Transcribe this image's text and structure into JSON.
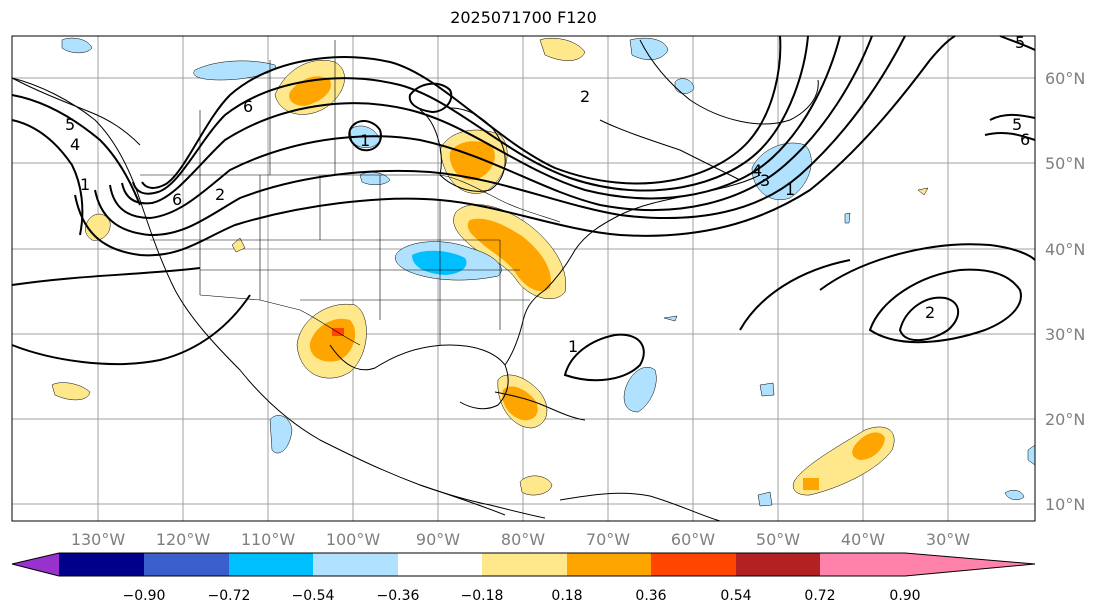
{
  "title": "2025071700 F120",
  "lat_labels": [
    "60°N",
    "50°N",
    "40°N",
    "30°N",
    "20°N",
    "10°N"
  ],
  "lon_labels": [
    "130°W",
    "120°W",
    "110°W",
    "100°W",
    "90°W",
    "80°W",
    "70°W",
    "60°W",
    "50°W",
    "40°W",
    "30°W"
  ],
  "contour_labels": [
    "6",
    "6",
    "5",
    "4",
    "1",
    "1",
    "2",
    "2",
    "1",
    "5",
    "6",
    "5",
    "4",
    "3",
    "2",
    "1"
  ],
  "colorbar": {
    "ticks": [
      "−0.90",
      "−0.72",
      "−0.54",
      "−0.36",
      "−0.18",
      "0.18",
      "0.36",
      "0.54",
      "0.72",
      "0.90"
    ],
    "colors": [
      "#9932cc",
      "#00008b",
      "#3a5fcd",
      "#00bfff",
      "#b0e2ff",
      "#ffffff",
      "#ffe88c",
      "#ffa500",
      "#ff4500",
      "#b22222",
      "#ff82ab"
    ]
  },
  "colors": {
    "positive_light": "#ffe88c",
    "positive_mid": "#ffa500",
    "positive_strong": "#ff4500",
    "negative_light": "#b0e2ff",
    "negative_mid": "#00bfff",
    "contour": "#000000",
    "gridline": "#a0a0a0"
  }
}
